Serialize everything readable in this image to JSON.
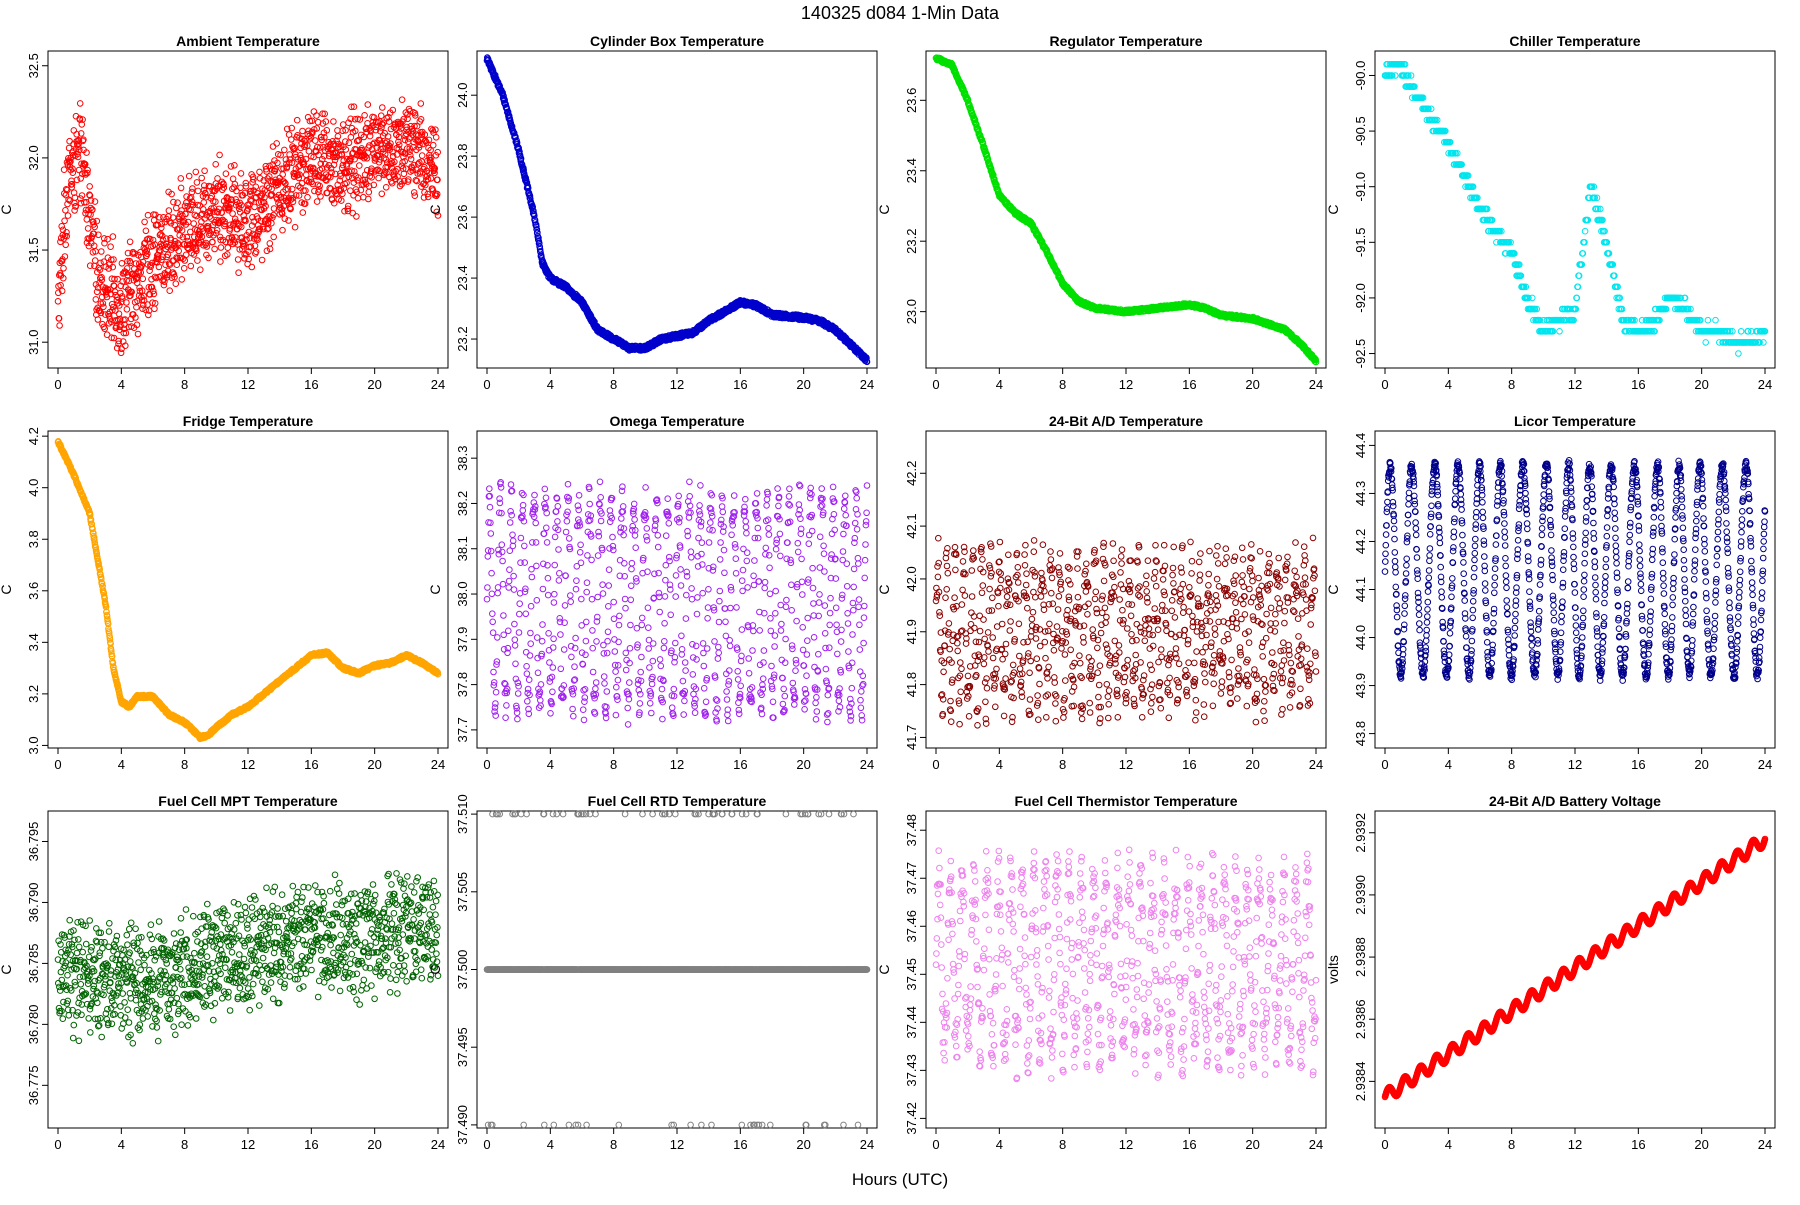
{
  "figure": {
    "title": "140325    d084    1-Min Data",
    "xlabel": "Hours (UTC)"
  },
  "chart_data": [
    {
      "type": "scatter",
      "title": "Ambient Temperature",
      "ylabel": "C",
      "color": "#ff0000",
      "xlim": [
        0,
        24
      ],
      "ylim": [
        30.86,
        32.58
      ],
      "xticks": [
        "0",
        "4",
        "8",
        "12",
        "16",
        "20",
        "24"
      ],
      "yticks": [
        "31.0",
        "31.5",
        "32.0",
        "32.5"
      ],
      "ytick_values": [
        31.0,
        31.5,
        32.0,
        32.5
      ],
      "gen": {
        "kind": "noise",
        "base": [
          [
            0,
            31.15
          ],
          [
            0.6,
            31.9
          ],
          [
            1.5,
            32.0
          ],
          [
            2.5,
            31.35
          ],
          [
            4,
            31.2
          ],
          [
            6,
            31.45
          ],
          [
            8,
            31.6
          ],
          [
            10,
            31.75
          ],
          [
            12,
            31.65
          ],
          [
            14,
            31.85
          ],
          [
            16,
            32.0
          ],
          [
            18,
            31.95
          ],
          [
            20,
            32.05
          ],
          [
            22,
            32.05
          ],
          [
            24,
            31.95
          ]
        ],
        "amp": 0.32,
        "n": 1440
      }
    },
    {
      "type": "scatter",
      "title": "Cylinder Box Temperature",
      "ylabel": "C",
      "color": "#0000cd",
      "xlim": [
        0,
        24
      ],
      "ylim": [
        23.105,
        24.145
      ],
      "xticks": [
        "0",
        "4",
        "8",
        "12",
        "16",
        "20",
        "24"
      ],
      "yticks": [
        "23.2",
        "23.4",
        "23.6",
        "23.8",
        "24.0"
      ],
      "ytick_values": [
        23.2,
        23.4,
        23.6,
        23.8,
        24.0
      ],
      "gen": {
        "kind": "smooth",
        "base": [
          [
            0,
            24.12
          ],
          [
            1,
            24.0
          ],
          [
            2,
            23.82
          ],
          [
            3,
            23.6
          ],
          [
            3.5,
            23.45
          ],
          [
            4,
            23.4
          ],
          [
            5,
            23.37
          ],
          [
            6,
            23.32
          ],
          [
            7,
            23.23
          ],
          [
            8,
            23.2
          ],
          [
            9,
            23.17
          ],
          [
            10,
            23.17
          ],
          [
            11,
            23.2
          ],
          [
            13,
            23.22
          ],
          [
            14,
            23.26
          ],
          [
            15,
            23.29
          ],
          [
            16,
            23.32
          ],
          [
            17,
            23.31
          ],
          [
            18,
            23.28
          ],
          [
            20,
            23.27
          ],
          [
            21,
            23.26
          ],
          [
            22,
            23.23
          ],
          [
            23,
            23.18
          ],
          [
            24,
            23.13
          ]
        ],
        "amp": 0.008,
        "n": 1440
      }
    },
    {
      "type": "scatter",
      "title": "Regulator Temperature",
      "ylabel": "C",
      "color": "#00e000",
      "xlim": [
        0,
        24
      ],
      "ylim": [
        22.84,
        23.74
      ],
      "xticks": [
        "0",
        "4",
        "8",
        "12",
        "16",
        "20",
        "24"
      ],
      "yticks": [
        "23.0",
        "23.2",
        "23.4",
        "23.6"
      ],
      "ytick_values": [
        23.0,
        23.2,
        23.4,
        23.6
      ],
      "gen": {
        "kind": "smooth",
        "base": [
          [
            0,
            23.72
          ],
          [
            1,
            23.7
          ],
          [
            2,
            23.6
          ],
          [
            3,
            23.47
          ],
          [
            4,
            23.33
          ],
          [
            5,
            23.28
          ],
          [
            6,
            23.25
          ],
          [
            7,
            23.17
          ],
          [
            8,
            23.08
          ],
          [
            9,
            23.03
          ],
          [
            10,
            23.01
          ],
          [
            12,
            23.0
          ],
          [
            14,
            23.01
          ],
          [
            16,
            23.02
          ],
          [
            17,
            23.01
          ],
          [
            18,
            22.99
          ],
          [
            20,
            22.98
          ],
          [
            22,
            22.95
          ],
          [
            23,
            22.91
          ],
          [
            24,
            22.86
          ]
        ],
        "amp": 0.005,
        "n": 1440
      }
    },
    {
      "type": "scatter",
      "title": "Chiller Temperature",
      "ylabel": "C",
      "color": "#00e5ee",
      "xlim": [
        0,
        24
      ],
      "ylim": [
        -92.63,
        -89.78
      ],
      "xticks": [
        "0",
        "4",
        "8",
        "12",
        "16",
        "20",
        "24"
      ],
      "yticks": [
        "-90.0",
        "-90.5",
        "-91.0",
        "-91.5",
        "-92.0",
        "-92.5"
      ],
      "ytick_values": [
        -90.0,
        -90.5,
        -91.0,
        -91.5,
        -92.0,
        -92.5
      ],
      "gen": {
        "kind": "quant",
        "step": 0.1,
        "base": [
          [
            0,
            -90.0
          ],
          [
            1,
            -89.9
          ],
          [
            2,
            -90.2
          ],
          [
            4,
            -90.6
          ],
          [
            6,
            -91.2
          ],
          [
            8,
            -91.6
          ],
          [
            9,
            -92.0
          ],
          [
            10,
            -92.3
          ],
          [
            11,
            -92.2
          ],
          [
            12,
            -92.1
          ],
          [
            13,
            -91.0
          ],
          [
            14,
            -91.5
          ],
          [
            15,
            -92.2
          ],
          [
            16,
            -92.3
          ],
          [
            17,
            -92.2
          ],
          [
            18,
            -92.0
          ],
          [
            19,
            -92.1
          ],
          [
            20,
            -92.3
          ],
          [
            21,
            -92.3
          ],
          [
            22,
            -92.4
          ],
          [
            23,
            -92.4
          ],
          [
            24,
            -92.3
          ]
        ],
        "amp": 0.12,
        "n": 700
      }
    },
    {
      "type": "scatter",
      "title": "Fridge Temperature",
      "ylabel": "C",
      "color": "#ffa500",
      "xlim": [
        0,
        24
      ],
      "ylim": [
        2.99,
        4.22
      ],
      "xticks": [
        "0",
        "4",
        "8",
        "12",
        "16",
        "20",
        "24"
      ],
      "yticks": [
        "3.0",
        "3.2",
        "3.4",
        "3.6",
        "3.8",
        "4.0",
        "4.2"
      ],
      "ytick_values": [
        3.0,
        3.2,
        3.4,
        3.6,
        3.8,
        4.0,
        4.2
      ],
      "gen": {
        "kind": "smooth",
        "base": [
          [
            0,
            4.18
          ],
          [
            1,
            4.05
          ],
          [
            2,
            3.9
          ],
          [
            3,
            3.55
          ],
          [
            3.5,
            3.3
          ],
          [
            4,
            3.17
          ],
          [
            4.5,
            3.15
          ],
          [
            5,
            3.19
          ],
          [
            6,
            3.19
          ],
          [
            7,
            3.12
          ],
          [
            8,
            3.09
          ],
          [
            9,
            3.03
          ],
          [
            9.5,
            3.04
          ],
          [
            10,
            3.07
          ],
          [
            11,
            3.12
          ],
          [
            12,
            3.15
          ],
          [
            13,
            3.2
          ],
          [
            14,
            3.25
          ],
          [
            15,
            3.3
          ],
          [
            16,
            3.35
          ],
          [
            17,
            3.36
          ],
          [
            18,
            3.3
          ],
          [
            19,
            3.28
          ],
          [
            20,
            3.31
          ],
          [
            21,
            3.32
          ],
          [
            22,
            3.35
          ],
          [
            23,
            3.32
          ],
          [
            24,
            3.28
          ]
        ],
        "amp": 0.006,
        "n": 1440
      }
    },
    {
      "type": "scatter",
      "title": "Omega Temperature",
      "ylabel": "C",
      "color": "#a020f0",
      "xlim": [
        0,
        24
      ],
      "ylim": [
        37.66,
        38.36
      ],
      "xticks": [
        "0",
        "4",
        "8",
        "12",
        "16",
        "20",
        "24"
      ],
      "yticks": [
        "37.7",
        "37.8",
        "37.9",
        "38.0",
        "38.1",
        "38.2",
        "38.3"
      ],
      "ytick_values": [
        37.7,
        37.8,
        37.9,
        38.0,
        38.1,
        38.2,
        38.3
      ],
      "gen": {
        "kind": "osc",
        "mid": 37.98,
        "amp": 0.23,
        "period": 0.7,
        "noise": 0.04,
        "n": 1000
      }
    },
    {
      "type": "scatter",
      "title": "24-Bit A/D Temperature",
      "ylabel": "C",
      "color": "#8b0000",
      "xlim": [
        0,
        24
      ],
      "ylim": [
        41.68,
        42.28
      ],
      "xticks": [
        "0",
        "4",
        "8",
        "12",
        "16",
        "20",
        "24"
      ],
      "yticks": [
        "41.7",
        "41.8",
        "41.9",
        "42.0",
        "42.1",
        "42.2"
      ],
      "ytick_values": [
        41.7,
        41.8,
        41.9,
        42.0,
        42.1,
        42.2
      ],
      "gen": {
        "kind": "osc",
        "mid": 41.9,
        "amp": 0.12,
        "period": 0.55,
        "noise": 0.06,
        "n": 1000
      }
    },
    {
      "type": "scatter",
      "title": "Licor Temperature",
      "ylabel": "C",
      "color": "#00008b",
      "xlim": [
        0,
        24
      ],
      "ylim": [
        43.77,
        44.43
      ],
      "xticks": [
        "0",
        "4",
        "8",
        "12",
        "16",
        "20",
        "24"
      ],
      "yticks": [
        "43.8",
        "43.9",
        "44.0",
        "44.1",
        "44.2",
        "44.3",
        "44.4"
      ],
      "ytick_values": [
        43.8,
        43.9,
        44.0,
        44.1,
        44.2,
        44.3,
        44.4
      ],
      "gen": {
        "kind": "osc",
        "mid": 44.14,
        "amp": 0.22,
        "period": 1.4,
        "noise": 0.01,
        "n": 1440
      }
    },
    {
      "type": "scatter",
      "title": "Fuel Cell MPT Temperature",
      "ylabel": "C",
      "color": "#006400",
      "xlim": [
        0,
        24
      ],
      "ylim": [
        36.7715,
        36.7975
      ],
      "xticks": [
        "0",
        "4",
        "8",
        "12",
        "16",
        "20",
        "24"
      ],
      "yticks": [
        "36.775",
        "36.780",
        "36.785",
        "36.790",
        "36.795"
      ],
      "ytick_values": [
        36.775,
        36.78,
        36.785,
        36.79,
        36.795
      ],
      "gen": {
        "kind": "noise",
        "base": [
          [
            0,
            36.784
          ],
          [
            4,
            36.7835
          ],
          [
            8,
            36.7845
          ],
          [
            12,
            36.786
          ],
          [
            16,
            36.787
          ],
          [
            20,
            36.787
          ],
          [
            24,
            36.788
          ]
        ],
        "amp": 0.0055,
        "n": 1200
      }
    },
    {
      "type": "scatter",
      "title": "Fuel Cell RTD Temperature",
      "ylabel": "C",
      "color": "#808080",
      "xlim": [
        0,
        24
      ],
      "ylim": [
        37.4898,
        37.5102
      ],
      "xticks": [
        "0",
        "4",
        "8",
        "12",
        "16",
        "20",
        "24"
      ],
      "yticks": [
        "37.490",
        "37.495",
        "37.500",
        "37.505",
        "37.510"
      ],
      "ytick_values": [
        37.49,
        37.495,
        37.5,
        37.505,
        37.51
      ],
      "gen": {
        "kind": "discrete",
        "levels": [
          37.49,
          37.5,
          37.51
        ],
        "n": 1440
      }
    },
    {
      "type": "scatter",
      "title": "Fuel Cell Thermistor Temperature",
      "ylabel": "C",
      "color": "#ee82ee",
      "xlim": [
        0,
        24
      ],
      "ylim": [
        37.418,
        37.484
      ],
      "xticks": [
        "0",
        "4",
        "8",
        "12",
        "16",
        "20",
        "24"
      ],
      "yticks": [
        "37.42",
        "37.43",
        "37.44",
        "37.45",
        "37.46",
        "37.47",
        "37.48"
      ],
      "ytick_values": [
        37.42,
        37.43,
        37.44,
        37.45,
        37.46,
        37.47,
        37.48
      ],
      "gen": {
        "kind": "osc",
        "mid": 37.452,
        "amp": 0.018,
        "period": 0.75,
        "noise": 0.006,
        "n": 1000
      }
    },
    {
      "type": "scatter",
      "title": "24-Bit A/D Battery Voltage",
      "ylabel": "volts",
      "color": "#ff0000",
      "xlim": [
        0,
        24
      ],
      "ylim": [
        2.93825,
        2.93927
      ],
      "xticks": [
        "0",
        "4",
        "8",
        "12",
        "16",
        "20",
        "24"
      ],
      "yticks": [
        "2.9384",
        "2.9386",
        "2.9388",
        "2.9390",
        "2.9392"
      ],
      "ytick_values": [
        2.9384,
        2.9386,
        2.9388,
        2.939,
        2.9392
      ],
      "gen": {
        "kind": "trendosc",
        "start": 2.93835,
        "end": 2.93918,
        "amp": 2.2e-05,
        "period": 1.0,
        "n": 1440
      }
    }
  ]
}
